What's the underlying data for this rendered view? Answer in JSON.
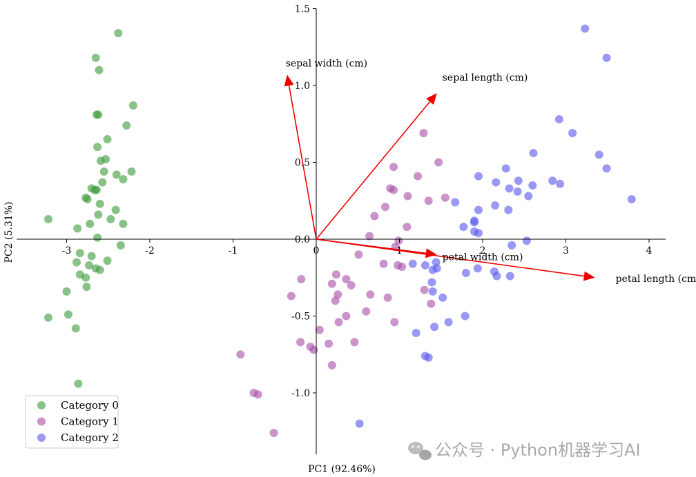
{
  "chart_data": {
    "type": "scatter",
    "xlabel": "PC1 (92.46%)",
    "ylabel": "PC2 (5.31%)",
    "xlim": [
      -3.6,
      4.2
    ],
    "ylim": [
      -1.4,
      1.5
    ],
    "x_ticks": [
      -3,
      -2,
      -1,
      0,
      1,
      2,
      3,
      4
    ],
    "x_tick_labels": [
      "-3",
      "-2",
      "-1",
      "0",
      "1",
      "2",
      "3",
      "4"
    ],
    "y_ticks": [
      -1.0,
      -0.5,
      0.0,
      0.5,
      1.0,
      1.5
    ],
    "y_tick_labels": [
      "-1.0",
      "-0.5",
      "0.0",
      "0.5",
      "1.0",
      "1.5"
    ],
    "legend_position": "lower-left",
    "series": [
      {
        "name": "Category 0",
        "color": "#3a9a3a",
        "points": [
          [
            -2.38,
            1.34
          ],
          [
            -2.65,
            1.18
          ],
          [
            -2.61,
            1.1
          ],
          [
            -2.64,
            0.81
          ],
          [
            -2.62,
            0.81
          ],
          [
            -2.2,
            0.87
          ],
          [
            -2.28,
            0.74
          ],
          [
            -2.51,
            0.65
          ],
          [
            -2.63,
            0.6
          ],
          [
            -2.59,
            0.51
          ],
          [
            -2.53,
            0.52
          ],
          [
            -2.55,
            0.44
          ],
          [
            -2.4,
            0.42
          ],
          [
            -2.22,
            0.44
          ],
          [
            -2.32,
            0.39
          ],
          [
            -2.57,
            0.37
          ],
          [
            -2.7,
            0.33
          ],
          [
            -2.66,
            0.32
          ],
          [
            -2.64,
            0.32
          ],
          [
            -2.77,
            0.27
          ],
          [
            -2.75,
            0.26
          ],
          [
            -2.6,
            0.23
          ],
          [
            -2.41,
            0.19
          ],
          [
            -2.62,
            0.16
          ],
          [
            -2.47,
            0.13
          ],
          [
            -2.72,
            0.1
          ],
          [
            -2.32,
            0.1
          ],
          [
            -3.22,
            0.13
          ],
          [
            -2.87,
            0.07
          ],
          [
            -2.63,
            0.01
          ],
          [
            -2.35,
            -0.04
          ],
          [
            -2.84,
            -0.09
          ],
          [
            -2.7,
            -0.11
          ],
          [
            -2.88,
            -0.15
          ],
          [
            -2.51,
            -0.14
          ],
          [
            -2.73,
            -0.17
          ],
          [
            -2.65,
            -0.19
          ],
          [
            -2.6,
            -0.2
          ],
          [
            -2.84,
            -0.23
          ],
          [
            -2.77,
            -0.25
          ],
          [
            -2.76,
            -0.31
          ],
          [
            -3.0,
            -0.34
          ],
          [
            -2.98,
            -0.49
          ],
          [
            -3.22,
            -0.51
          ],
          [
            -2.89,
            -0.58
          ],
          [
            -2.86,
            -0.94
          ]
        ]
      },
      {
        "name": "Category 1",
        "color": "#a64ca6",
        "points": [
          [
            1.29,
            0.69
          ],
          [
            1.47,
            0.5
          ],
          [
            0.93,
            0.47
          ],
          [
            1.22,
            0.41
          ],
          [
            1.55,
            0.27
          ],
          [
            0.89,
            0.33
          ],
          [
            0.93,
            0.32
          ],
          [
            1.1,
            0.28
          ],
          [
            0.83,
            0.21
          ],
          [
            1.35,
            0.25
          ],
          [
            0.7,
            0.15
          ],
          [
            1.09,
            0.08
          ],
          [
            0.64,
            0.02
          ],
          [
            0.99,
            -0.01
          ],
          [
            0.95,
            -0.05
          ],
          [
            0.51,
            -0.1
          ],
          [
            0.81,
            -0.16
          ],
          [
            0.98,
            -0.17
          ],
          [
            1.03,
            -0.18
          ],
          [
            0.24,
            -0.23
          ],
          [
            -0.18,
            -0.26
          ],
          [
            0.36,
            -0.26
          ],
          [
            0.19,
            -0.29
          ],
          [
            0.42,
            -0.3
          ],
          [
            -0.3,
            -0.37
          ],
          [
            0.26,
            -0.36
          ],
          [
            0.65,
            -0.36
          ],
          [
            0.23,
            -0.4
          ],
          [
            0.86,
            -0.38
          ],
          [
            1.3,
            -0.33
          ],
          [
            1.38,
            -0.42
          ],
          [
            0.36,
            -0.5
          ],
          [
            0.6,
            -0.47
          ],
          [
            0.27,
            -0.54
          ],
          [
            0.94,
            -0.54
          ],
          [
            0.04,
            -0.59
          ],
          [
            -0.19,
            -0.67
          ],
          [
            0.46,
            -0.67
          ],
          [
            0.15,
            -0.68
          ],
          [
            -0.03,
            -0.72
          ],
          [
            -0.07,
            -0.7
          ],
          [
            0.19,
            -0.82
          ],
          [
            -0.91,
            -0.75
          ],
          [
            -0.75,
            -1.0
          ],
          [
            -0.7,
            -1.01
          ],
          [
            -0.51,
            -1.26
          ]
        ]
      },
      {
        "name": "Category 2",
        "color": "#5555ee",
        "points": [
          [
            3.23,
            1.37
          ],
          [
            3.49,
            1.18
          ],
          [
            2.92,
            0.78
          ],
          [
            3.08,
            0.69
          ],
          [
            3.4,
            0.55
          ],
          [
            3.49,
            0.46
          ],
          [
            2.61,
            0.56
          ],
          [
            2.28,
            0.46
          ],
          [
            1.95,
            0.41
          ],
          [
            2.16,
            0.37
          ],
          [
            2.32,
            0.33
          ],
          [
            2.43,
            0.38
          ],
          [
            2.42,
            0.31
          ],
          [
            2.6,
            0.35
          ],
          [
            2.84,
            0.38
          ],
          [
            2.93,
            0.36
          ],
          [
            2.55,
            0.28
          ],
          [
            3.79,
            0.26
          ],
          [
            1.67,
            0.24
          ],
          [
            2.15,
            0.22
          ],
          [
            1.95,
            0.19
          ],
          [
            2.31,
            0.19
          ],
          [
            1.9,
            0.12
          ],
          [
            1.9,
            0.11
          ],
          [
            1.77,
            0.08
          ],
          [
            1.9,
            0.05
          ],
          [
            1.95,
            0.04
          ],
          [
            2.53,
            -0.01
          ],
          [
            2.35,
            -0.04
          ],
          [
            1.16,
            -0.16
          ],
          [
            1.31,
            -0.17
          ],
          [
            1.44,
            -0.15
          ],
          [
            1.45,
            -0.19
          ],
          [
            1.94,
            -0.19
          ],
          [
            1.4,
            -0.2
          ],
          [
            1.8,
            -0.22
          ],
          [
            2.14,
            -0.21
          ],
          [
            2.17,
            -0.24
          ],
          [
            2.33,
            -0.24
          ],
          [
            1.39,
            -0.28
          ],
          [
            1.4,
            -0.34
          ],
          [
            1.52,
            -0.38
          ],
          [
            1.79,
            -0.5
          ],
          [
            1.59,
            -0.54
          ],
          [
            1.42,
            -0.57
          ],
          [
            1.2,
            -0.61
          ],
          [
            1.31,
            -0.76
          ],
          [
            1.35,
            -0.77
          ],
          [
            0.52,
            -1.2
          ]
        ]
      }
    ],
    "loadings": [
      {
        "label": "sepal length (cm)",
        "x": 1.45,
        "y": 0.95
      },
      {
        "label": "sepal width (cm)",
        "x": -0.35,
        "y": 1.07
      },
      {
        "label": "petal length (cm)",
        "x": 3.35,
        "y": -0.25
      },
      {
        "label": "petal width (cm)",
        "x": 1.45,
        "y": -0.1
      }
    ],
    "loading_color": "#ee0000"
  },
  "watermark": "公众号 · Python机器学习AI"
}
